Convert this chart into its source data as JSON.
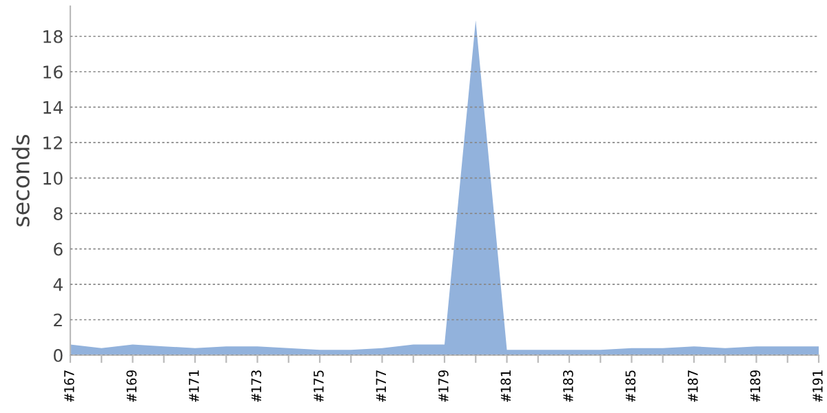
{
  "chart_data": {
    "type": "area",
    "ylabel": "seconds",
    "categories": [
      "#167",
      null,
      "#169",
      null,
      "#171",
      null,
      "#173",
      null,
      "#175",
      null,
      "#177",
      null,
      "#179",
      null,
      "#181",
      null,
      "#183",
      null,
      "#185",
      null,
      "#187",
      null,
      "#189",
      null,
      "#191"
    ],
    "series": [
      {
        "color": "#92b2dc",
        "values": [
          0.6,
          0.4,
          0.6,
          0.5,
          0.4,
          0.5,
          0.5,
          0.4,
          0.3,
          0.3,
          0.4,
          0.6,
          0.6,
          18.9,
          0.3,
          0.3,
          0.3,
          0.3,
          0.4,
          0.4,
          0.5,
          0.4,
          0.5,
          0.5,
          0.5
        ]
      }
    ],
    "ylim": [
      0,
      19.7
    ],
    "yticks": [
      0,
      2,
      4,
      6,
      8,
      10,
      12,
      14,
      16,
      18
    ],
    "grid": "y",
    "legend": false
  }
}
